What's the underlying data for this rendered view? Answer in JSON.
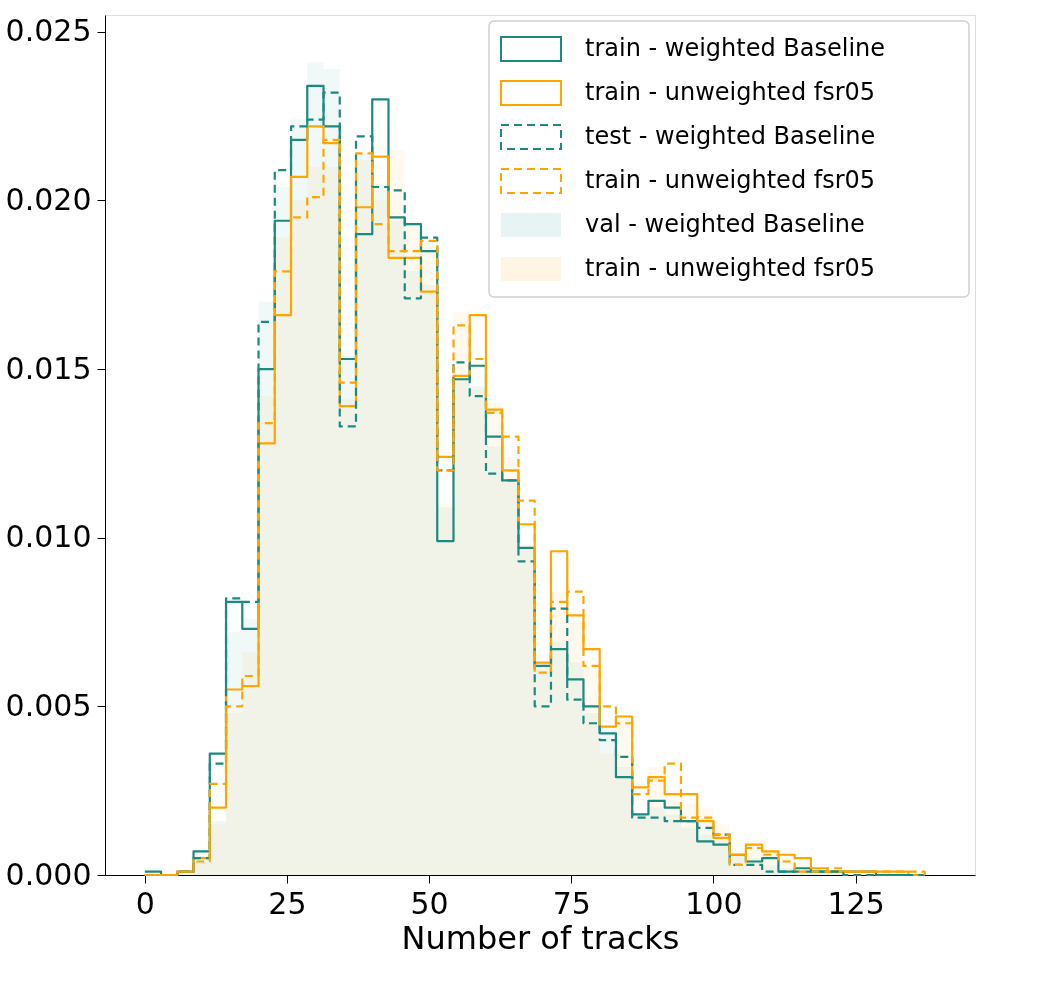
{
  "chart_data": {
    "type": "step",
    "xlabel": "Number of tracks",
    "legend": "top right",
    "grid": false,
    "x": [
      0,
      2.857,
      5.714,
      8.571,
      11.429,
      14.286,
      17.143,
      20,
      22.857,
      25.714,
      28.571,
      31.429,
      34.286,
      37.143,
      40,
      42.857,
      45.714,
      48.571,
      51.429,
      54.286,
      57.143,
      60,
      62.857,
      65.714,
      68.571,
      71.429,
      74.286,
      77.143,
      80,
      82.857,
      85.714,
      88.571,
      91.429,
      94.286,
      97.143,
      100,
      102.857,
      105.714,
      108.571,
      111.429,
      114.286,
      117.143,
      120,
      122.857,
      125.714,
      128.571,
      131.429,
      134.286,
      137.143
    ],
    "xlim": [
      -7,
      146
    ],
    "ylim": [
      0,
      0.0255
    ],
    "xticks": [
      0,
      25,
      50,
      75,
      100,
      125
    ],
    "yticks": [
      {
        "value": 0,
        "label": "0.000"
      },
      {
        "value": 0.005,
        "label": "0.005"
      },
      {
        "value": 0.01,
        "label": "0.010"
      },
      {
        "value": 0.015,
        "label": "0.015"
      },
      {
        "value": 0.02,
        "label": "0.020"
      },
      {
        "value": 0.025,
        "label": "0.025"
      }
    ],
    "series": [
      {
        "name": "train - weighted Baseline",
        "line_style": "solid",
        "color": "#1b8a80",
        "values": [
          0.0001,
          0,
          0.0001,
          0.0007,
          0.0036,
          0.0081,
          0.0073,
          0.015,
          0.0194,
          0.0218,
          0.0234,
          0.0222,
          0.0153,
          0.019,
          0.023,
          0.0195,
          0.0193,
          0.0185,
          0.0099,
          0.0147,
          0.0151,
          0.013,
          0.0117,
          0.0097,
          0.0062,
          0.0067,
          0.0058,
          0.005,
          0.0042,
          0.0029,
          0.0018,
          0.0022,
          0.002,
          0.0016,
          0.001,
          0.0009,
          0.0006,
          0.0004,
          0.0005,
          0.0001,
          0.0002,
          0.0001,
          0.0001,
          0.0001,
          0.0001,
          0,
          0,
          0,
          0
        ]
      },
      {
        "name": "train - unweighted fsr05",
        "line_style": "solid",
        "color": "#ffa500",
        "values": [
          0,
          0,
          0.0001,
          0.0005,
          0.002,
          0.0055,
          0.0056,
          0.0128,
          0.0166,
          0.0207,
          0.0222,
          0.0217,
          0.0139,
          0.0198,
          0.0213,
          0.0183,
          0.0183,
          0.0173,
          0.0124,
          0.0148,
          0.0166,
          0.0138,
          0.012,
          0.0104,
          0.0063,
          0.0096,
          0.0077,
          0.0067,
          0.0044,
          0.0047,
          0.0026,
          0.0029,
          0.0024,
          0.0024,
          0.0016,
          0.0011,
          0.0006,
          0.0009,
          0.0007,
          0.0006,
          0.0005,
          0.0002,
          0.0001,
          0.0001,
          0.0001,
          0.0001,
          0.0001,
          0,
          0
        ]
      },
      {
        "name": "test - weighted Baseline",
        "line_style": "dashed",
        "color": "#1b8a80",
        "values": [
          0,
          0,
          0.0001,
          0.0005,
          0.0033,
          0.0082,
          0.0081,
          0.0164,
          0.0209,
          0.0222,
          0.0224,
          0.0232,
          0.0133,
          0.0219,
          0.0204,
          0.0203,
          0.0171,
          0.0189,
          0.012,
          0.0152,
          0.0142,
          0.0119,
          0.0117,
          0.0093,
          0.005,
          0.0079,
          0.0052,
          0.0045,
          0.004,
          0.0035,
          0.0017,
          0.0017,
          0.0016,
          0.0016,
          0.0014,
          0.0012,
          0.0003,
          0.0003,
          0.0001,
          0.0001,
          0.0001,
          0.0001,
          0.0001,
          0,
          0,
          0,
          0,
          0,
          0
        ]
      },
      {
        "name": "train - unweighted fsr05",
        "line_style": "dashed",
        "color": "#ffa500",
        "values": [
          0,
          0,
          0.0001,
          0.0004,
          0.0027,
          0.005,
          0.0059,
          0.0134,
          0.0179,
          0.0195,
          0.0201,
          0.0218,
          0.0146,
          0.0214,
          0.0193,
          0.0185,
          0.0185,
          0.0188,
          0.012,
          0.0163,
          0.0153,
          0.0137,
          0.013,
          0.0111,
          0.006,
          0.0081,
          0.0084,
          0.0062,
          0.005,
          0.0045,
          0.0024,
          0.0028,
          0.0033,
          0.0017,
          0.0017,
          0.0012,
          0.0003,
          0.0008,
          0.0006,
          0.0004,
          0.0001,
          0.0001,
          0.0002,
          0.0001,
          0.0001,
          0.0001,
          0.0001,
          0.0001,
          0
        ]
      },
      {
        "name": "val - weighted Baseline",
        "type": "area",
        "color": "#e7f4f3",
        "values": [
          0,
          0,
          0.0001,
          0.0006,
          0.0016,
          0.0072,
          0.0076,
          0.017,
          0.0204,
          0.0224,
          0.0241,
          0.0239,
          0.0154,
          0.0214,
          0.0205,
          0.0194,
          0.0179,
          0.0175,
          0.0109,
          0.0147,
          0.0145,
          0.0127,
          0.0117,
          0.0096,
          0.0061,
          0.0069,
          0.0063,
          0.0048,
          0.0043,
          0.0032,
          0.0018,
          0.002,
          0.0018,
          0.0014,
          0.0012,
          0.0011,
          0.0006,
          0.0005,
          0.0003,
          0.0002,
          0.0001,
          0.0001,
          0.0001,
          0,
          0,
          0,
          0,
          0,
          0
        ]
      },
      {
        "name": "train - unweighted fsr05",
        "type": "area",
        "color": "#fff5e4",
        "values": [
          0,
          0,
          0,
          0.0004,
          0.0015,
          0.0048,
          0.0066,
          0.0142,
          0.0189,
          0.02,
          0.021,
          0.021,
          0.0141,
          0.0212,
          0.02,
          0.0215,
          0.0193,
          0.0188,
          0.011,
          0.0167,
          0.0144,
          0.014,
          0.0124,
          0.0098,
          0.0063,
          0.0084,
          0.0075,
          0.0062,
          0.0036,
          0.0046,
          0.0018,
          0.0032,
          0.0025,
          0.0021,
          0.002,
          0.0015,
          0.0006,
          0.001,
          0.0007,
          0.0005,
          0.0003,
          0.0001,
          0.0001,
          0.0001,
          0.0001,
          0.0001,
          0,
          0,
          0
        ]
      }
    ]
  }
}
